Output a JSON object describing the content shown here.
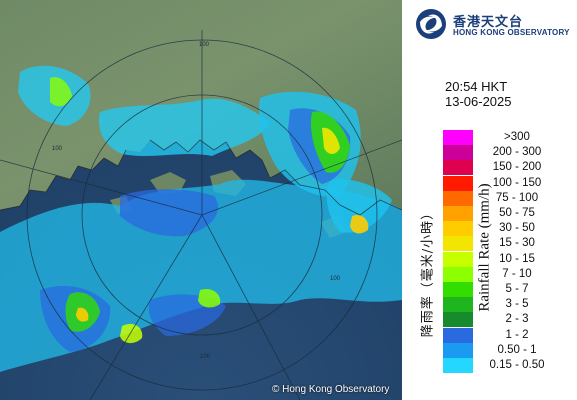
{
  "logo": {
    "name_cn": "香港天文台",
    "name_en": "HONG KONG OBSERVATORY",
    "icon": "hko-logo-icon"
  },
  "timestamp": {
    "time": "20:54 HKT",
    "date": "13-06-2025"
  },
  "credit": "© Hong Kong Observatory",
  "range_ring_labels": [
    "100",
    "100",
    "100",
    "100"
  ],
  "legend": {
    "title_en": "Rainfall Rate (mm/h)",
    "title_cn": "降雨率（毫米/小時）",
    "items": [
      {
        "label": ">300",
        "color": "#ff00ff"
      },
      {
        "label": "200 - 300",
        "color": "#cc0099"
      },
      {
        "label": "150 - 200",
        "color": "#e00050"
      },
      {
        "label": "100 - 150",
        "color": "#ff1a00"
      },
      {
        "label": "75 - 100",
        "color": "#ff6a00"
      },
      {
        "label": "50 - 75",
        "color": "#ffa200"
      },
      {
        "label": "30 - 50",
        "color": "#ffcc00"
      },
      {
        "label": "15 - 30",
        "color": "#f2e600"
      },
      {
        "label": "10 - 15",
        "color": "#c6ff00"
      },
      {
        "label": "7 - 10",
        "color": "#8cff00"
      },
      {
        "label": "5 - 7",
        "color": "#33dd00"
      },
      {
        "label": "3 - 5",
        "color": "#1fb51f"
      },
      {
        "label": "2 - 3",
        "color": "#178a2e"
      },
      {
        "label": "1 - 2",
        "color": "#2a6ae0"
      },
      {
        "label": "0.50 - 1",
        "color": "#1a9af0"
      },
      {
        "label": "0.15 - 0.50",
        "color": "#24d7ff"
      }
    ]
  }
}
